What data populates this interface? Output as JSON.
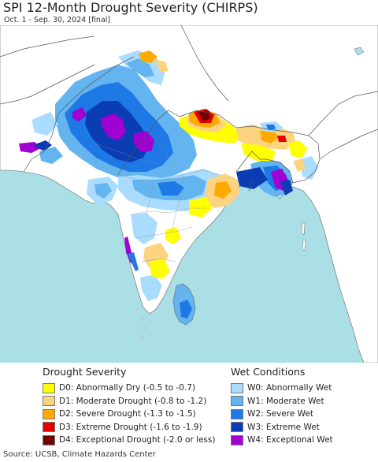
{
  "header": {
    "title": "SPI 12-Month Drought Severity (CHIRPS)",
    "subtitle": "Oct. 1 - Sep. 30, 2024 [final]"
  },
  "legend": {
    "drought": {
      "heading": "Drought Severity",
      "items": [
        {
          "label": "D0: Abnormally Dry (-0.5 to -0.7)",
          "color": "#ffff00"
        },
        {
          "label": "D1: Moderate Drought (-0.8 to -1.2)",
          "color": "#fcd37f"
        },
        {
          "label": "D2: Severe Drought (-1.3 to -1.5)",
          "color": "#ffaa00"
        },
        {
          "label": "D3: Extreme Drought (-1.6 to -1.9)",
          "color": "#e60000"
        },
        {
          "label": "D4: Exceptional Drought (-2.0 or less)",
          "color": "#730000"
        }
      ]
    },
    "wet": {
      "heading": "Wet Conditions",
      "items": [
        {
          "label": "W0: Abnormally Wet",
          "color": "#aadcff"
        },
        {
          "label": "W1: Moderate Wet",
          "color": "#64b4f0"
        },
        {
          "label": "W2: Severe Wet",
          "color": "#1e78e6"
        },
        {
          "label": "W3: Extreme Wet",
          "color": "#0a3cb4"
        },
        {
          "label": "W4: Exceptional Wet",
          "color": "#a000d2"
        }
      ]
    }
  },
  "map": {
    "ocean_color": "#aadfe6",
    "land_color": "#ffffff",
    "border_color": "#555555"
  },
  "footer": {
    "source": "Source: UCSB, Climate Hazards Center"
  }
}
